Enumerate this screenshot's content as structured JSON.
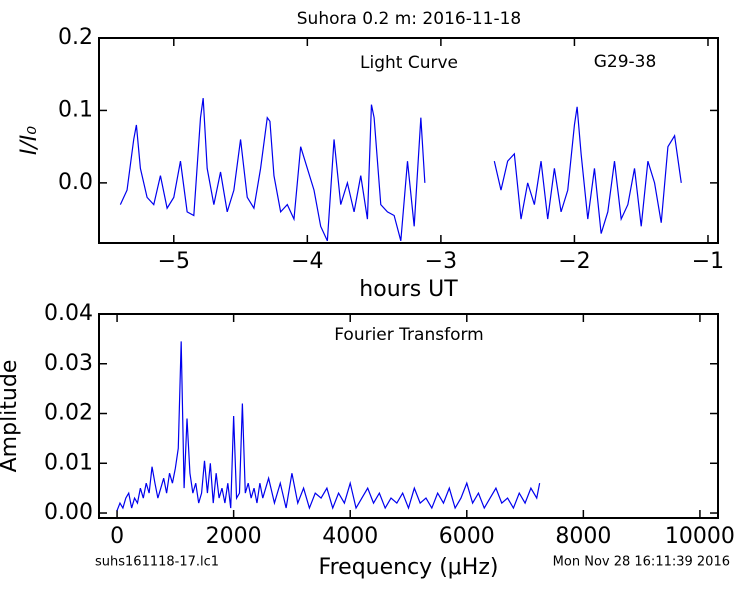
{
  "figure": {
    "title": "Suhora 0.2 m:  2016-11-18",
    "footer_left": "suhs161118-17.lc1",
    "footer_right": "Mon Nov 28 16:11:39 2016"
  },
  "chart_data": [
    {
      "type": "line",
      "xlabel": "hours UT",
      "ylabel": "I/I₀",
      "annotations": [
        "Light Curve",
        "G29-38"
      ],
      "xlim": [
        -5.56,
        -0.925
      ],
      "ylim": [
        -0.083,
        0.2
      ],
      "xticks": [
        {
          "value": -5,
          "label": "−5"
        },
        {
          "value": -4,
          "label": "−4"
        },
        {
          "value": -3,
          "label": "−3"
        },
        {
          "value": -2,
          "label": "−2"
        },
        {
          "value": -1,
          "label": "−1"
        }
      ],
      "yticks": [
        {
          "value": 0,
          "label": "0.0"
        },
        0.1,
        0.2
      ],
      "x": [
        -5.4,
        -5.35,
        -5.3,
        -5.28,
        -5.25,
        -5.2,
        -5.15,
        -5.1,
        -5.05,
        -5.0,
        -4.95,
        -4.9,
        -4.85,
        -4.8,
        -4.78,
        -4.75,
        -4.7,
        -4.65,
        -4.6,
        -4.55,
        -4.5,
        -4.45,
        -4.4,
        -4.35,
        -4.3,
        -4.28,
        -4.25,
        -4.2,
        -4.15,
        -4.1,
        -4.05,
        -4.0,
        -3.95,
        -3.9,
        -3.85,
        -3.8,
        -3.75,
        -3.7,
        -3.65,
        -3.6,
        -3.55,
        -3.52,
        -3.5,
        -3.45,
        -3.4,
        -3.35,
        -3.3,
        -3.25,
        -3.2,
        -3.15,
        -3.12,
        -2.85,
        -2.6,
        -2.55,
        -2.5,
        -2.45,
        -2.4,
        -2.35,
        -2.3,
        -2.25,
        -2.2,
        -2.15,
        -2.1,
        -2.05,
        -2.0,
        -1.98,
        -1.95,
        -1.9,
        -1.85,
        -1.8,
        -1.75,
        -1.7,
        -1.65,
        -1.6,
        -1.55,
        -1.5,
        -1.45,
        -1.4,
        -1.35,
        -1.3,
        -1.25,
        -1.2
      ],
      "series": [
        {
          "name": "light curve",
          "color": "#0000ee",
          "values": [
            -0.03,
            -0.01,
            0.06,
            0.08,
            0.02,
            -0.02,
            -0.03,
            0.01,
            -0.035,
            -0.02,
            0.03,
            -0.04,
            -0.045,
            0.09,
            0.117,
            0.02,
            -0.03,
            0.015,
            -0.04,
            -0.01,
            0.06,
            -0.02,
            -0.035,
            0.02,
            0.09,
            0.085,
            0.01,
            -0.04,
            -0.03,
            -0.05,
            0.05,
            0.02,
            -0.01,
            -0.06,
            -0.08,
            0.06,
            -0.03,
            0.0,
            -0.04,
            0.01,
            -0.05,
            0.108,
            0.09,
            -0.03,
            -0.04,
            -0.045,
            -0.08,
            0.03,
            -0.06,
            0.09,
            0.0,
            null,
            0.03,
            -0.01,
            0.03,
            0.04,
            -0.05,
            0.0,
            -0.03,
            0.03,
            -0.05,
            0.02,
            -0.04,
            -0.01,
            0.08,
            0.105,
            0.04,
            -0.05,
            0.02,
            -0.07,
            -0.04,
            0.03,
            -0.05,
            -0.03,
            0.02,
            -0.06,
            0.03,
            0.0,
            -0.055,
            0.05,
            0.065,
            0.0
          ]
        }
      ]
    },
    {
      "type": "line",
      "xlabel": "Frequency (μHz)",
      "ylabel": "Amplitude",
      "annotations": [
        "Fourier Transform"
      ],
      "xlim": [
        -310,
        10310
      ],
      "ylim": [
        -0.001,
        0.04
      ],
      "xticks": [
        0,
        2000,
        4000,
        6000,
        8000,
        10000
      ],
      "yticks": [
        {
          "value": 0,
          "label": "0.00"
        },
        {
          "value": 0.01,
          "label": "0.01"
        },
        {
          "value": 0.02,
          "label": "0.02"
        },
        {
          "value": 0.03,
          "label": "0.03"
        },
        {
          "value": 0.04,
          "label": "0.04"
        }
      ],
      "x": [
        0,
        50,
        100,
        150,
        200,
        250,
        300,
        350,
        400,
        450,
        500,
        550,
        600,
        650,
        700,
        750,
        800,
        850,
        900,
        950,
        1000,
        1050,
        1100,
        1150,
        1200,
        1250,
        1300,
        1350,
        1400,
        1450,
        1500,
        1550,
        1600,
        1650,
        1700,
        1750,
        1800,
        1850,
        1900,
        1950,
        2000,
        2050,
        2100,
        2150,
        2200,
        2250,
        2300,
        2350,
        2400,
        2450,
        2500,
        2600,
        2700,
        2800,
        2900,
        3000,
        3100,
        3200,
        3300,
        3400,
        3500,
        3600,
        3700,
        3800,
        3900,
        4000,
        4100,
        4200,
        4300,
        4400,
        4500,
        4600,
        4700,
        4800,
        4900,
        5000,
        5100,
        5200,
        5300,
        5400,
        5500,
        5600,
        5700,
        5800,
        5900,
        6000,
        6100,
        6200,
        6300,
        6400,
        6500,
        6600,
        6700,
        6800,
        6900,
        7000,
        7100,
        7200,
        7250
      ],
      "series": [
        {
          "name": "fourier",
          "color": "#0000ee",
          "values": [
            0.0005,
            0.002,
            0.001,
            0.003,
            0.004,
            0.001,
            0.003,
            0.002,
            0.005,
            0.003,
            0.006,
            0.004,
            0.0093,
            0.006,
            0.003,
            0.005,
            0.007,
            0.004,
            0.008,
            0.006,
            0.009,
            0.013,
            0.0345,
            0.005,
            0.019,
            0.008,
            0.004,
            0.006,
            0.002,
            0.004,
            0.0105,
            0.004,
            0.01,
            0.002,
            0.008,
            0.003,
            0.005,
            0.002,
            0.006,
            0.001,
            0.0195,
            0.003,
            0.004,
            0.022,
            0.004,
            0.006,
            0.003,
            0.005,
            0.002,
            0.006,
            0.003,
            0.007,
            0.002,
            0.006,
            0.001,
            0.008,
            0.002,
            0.005,
            0.001,
            0.004,
            0.003,
            0.005,
            0.001,
            0.004,
            0.002,
            0.006,
            0.001,
            0.003,
            0.005,
            0.002,
            0.004,
            0.001,
            0.003,
            0.002,
            0.004,
            0.001,
            0.005,
            0.002,
            0.003,
            0.001,
            0.004,
            0.002,
            0.005,
            0.001,
            0.003,
            0.006,
            0.002,
            0.004,
            0.001,
            0.003,
            0.005,
            0.002,
            0.003,
            0.001,
            0.004,
            0.002,
            0.005,
            0.003,
            0.006
          ]
        }
      ]
    }
  ]
}
